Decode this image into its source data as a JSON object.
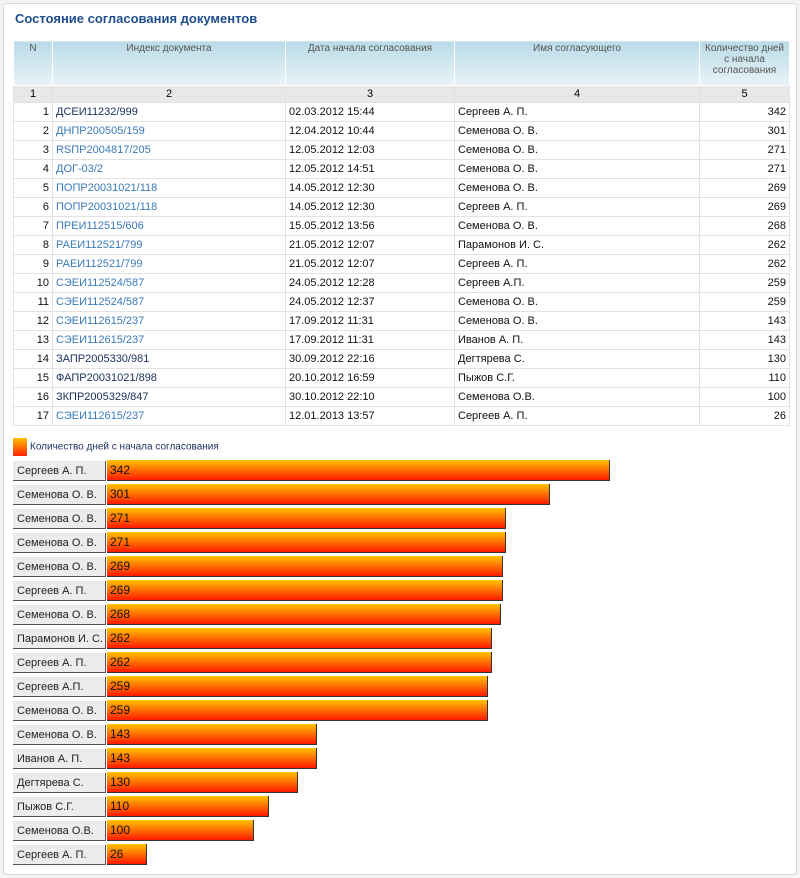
{
  "title": "Состояние согласования документов",
  "table": {
    "headers": [
      "N",
      "Индекс документа",
      "Дата начала согласования",
      "Имя согласующего",
      "Количество дней с начала согласования"
    ],
    "column_numbers": [
      "1",
      "2",
      "3",
      "4",
      "5"
    ],
    "rows": [
      {
        "n": "1",
        "doc": "ДСЕИ11232/999",
        "date": "02.03.2012 15:44",
        "name": "Сергеев А. П.",
        "days": "342",
        "dark": true
      },
      {
        "n": "2",
        "doc": "ДНПР200505/159",
        "date": "12.04.2012 10:44",
        "name": "Семенова О. В.",
        "days": "301",
        "dark": false
      },
      {
        "n": "3",
        "doc": "RSПР2004817/205",
        "date": "12.05.2012 12:03",
        "name": "Семенова О. В.",
        "days": "271",
        "dark": false
      },
      {
        "n": "4",
        "doc": "ДОГ-03/2",
        "date": "12.05.2012 14:51",
        "name": "Семенова О. В.",
        "days": "271",
        "dark": false
      },
      {
        "n": "5",
        "doc": "ПОПР20031021/118",
        "date": "14.05.2012 12:30",
        "name": "Семенова О. В.",
        "days": "269",
        "dark": false
      },
      {
        "n": "6",
        "doc": "ПОПР20031021/118",
        "date": "14.05.2012 12:30",
        "name": "Сергеев А. П.",
        "days": "269",
        "dark": false
      },
      {
        "n": "7",
        "doc": "ПРЕИ112515/606",
        "date": "15.05.2012 13:56",
        "name": "Семенова О. В.",
        "days": "268",
        "dark": false
      },
      {
        "n": "8",
        "doc": "РАЕИ112521/799",
        "date": "21.05.2012 12:07",
        "name": "Парамонов И. С.",
        "days": "262",
        "dark": false
      },
      {
        "n": "9",
        "doc": "РАЕИ112521/799",
        "date": "21.05.2012 12:07",
        "name": "Сергеев А. П.",
        "days": "262",
        "dark": false
      },
      {
        "n": "10",
        "doc": "СЭЕИ112524/587",
        "date": "24.05.2012 12:28",
        "name": "Сергеев А.П.",
        "days": "259",
        "dark": false
      },
      {
        "n": "11",
        "doc": "СЭЕИ112524/587",
        "date": "24.05.2012 12:37",
        "name": "Семенова О. В.",
        "days": "259",
        "dark": false
      },
      {
        "n": "12",
        "doc": "СЭЕИ112615/237",
        "date": "17.09.2012 11:31",
        "name": "Семенова О. В.",
        "days": "143",
        "dark": false
      },
      {
        "n": "13",
        "doc": "СЭЕИ112615/237",
        "date": "17.09.2012 11:31",
        "name": "Иванов А. П.",
        "days": "143",
        "dark": false
      },
      {
        "n": "14",
        "doc": "ЗАПР2005330/981",
        "date": "30.09.2012 22:16",
        "name": "Дегтярева С.",
        "days": "130",
        "dark": true
      },
      {
        "n": "15",
        "doc": "ФАПР20031021/898",
        "date": "20.10.2012 16:59",
        "name": "Пыжов С.Г.",
        "days": "110",
        "dark": true
      },
      {
        "n": "16",
        "doc": "ЗКПР2005329/847",
        "date": "30.10.2012 22:10",
        "name": "Семенова О.В.",
        "days": "100",
        "dark": true
      },
      {
        "n": "17",
        "doc": "СЭЕИ112615/237",
        "date": "12.01.2013 13:57",
        "name": "Сергеев А. П.",
        "days": "26",
        "dark": false
      }
    ]
  },
  "chart_data": {
    "type": "bar",
    "orientation": "horizontal",
    "legend": "Количество дней с начала согласования",
    "legend_placement": "top-left",
    "categories": [
      "Сергеев А. П.",
      "Семенова О. В.",
      "Семенова О. В.",
      "Семенова О. В.",
      "Семенова О. В.",
      "Сергеев А. П.",
      "Семенова О. В.",
      "Парамонов И. С.",
      "Сергеев А. П.",
      "Сергеев А.П.",
      "Семенова О. В.",
      "Семенова О. В.",
      "Иванов А. П.",
      "Дегтярева С.",
      "Пыжов С.Г.",
      "Семенова О.В.",
      "Сергеев А. П."
    ],
    "values": [
      342,
      301,
      271,
      271,
      269,
      269,
      268,
      262,
      262,
      259,
      259,
      143,
      143,
      130,
      110,
      100,
      26
    ],
    "colors": {
      "top": "#ffc400",
      "bottom": "#ff1a00"
    }
  }
}
